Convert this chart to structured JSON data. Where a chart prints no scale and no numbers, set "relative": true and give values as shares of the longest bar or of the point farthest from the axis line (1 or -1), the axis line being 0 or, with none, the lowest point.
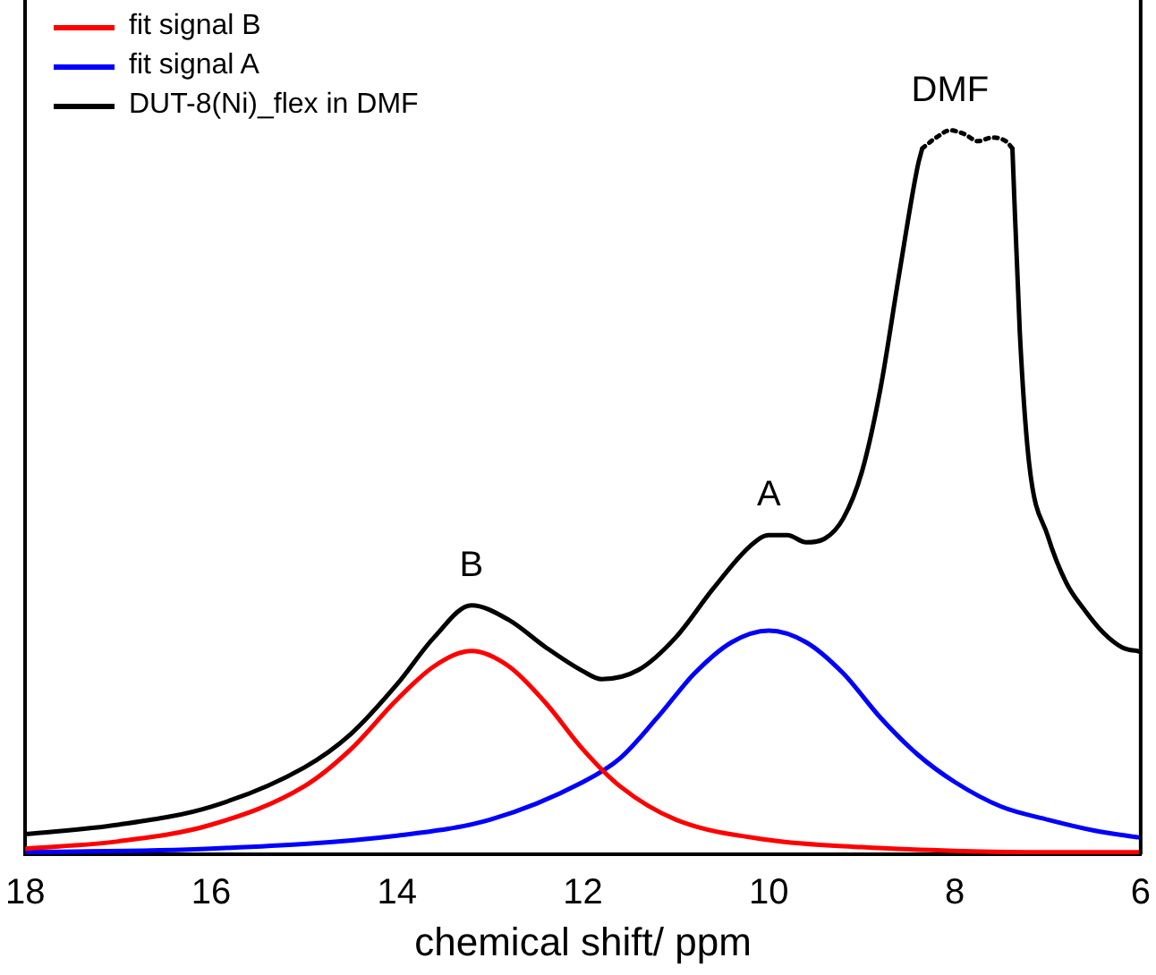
{
  "chart_data": {
    "type": "line",
    "relative": true,
    "xlabel": "chemical shift/ ppm",
    "xlim": [
      18,
      6
    ],
    "xticks": [
      18,
      16,
      14,
      12,
      10,
      8,
      6
    ],
    "grid": false,
    "legend": "top left",
    "marker": "none",
    "series": [
      {
        "name": "fit signal B",
        "color": "#ff0000",
        "line_style": "solid",
        "x": [
          18,
          17,
          16,
          15,
          14.5,
          14,
          13.6,
          13.2,
          12.8,
          12.4,
          12,
          11.6,
          11,
          10,
          9,
          8,
          7,
          6
        ],
        "values": [
          0.008,
          0.018,
          0.041,
          0.094,
          0.145,
          0.214,
          0.26,
          0.281,
          0.26,
          0.209,
          0.145,
          0.094,
          0.048,
          0.02,
          0.01,
          0.005,
          0.003,
          0.003
        ]
      },
      {
        "name": "fit signal A",
        "color": "#0000ff",
        "line_style": "solid",
        "x": [
          18,
          16,
          14,
          13,
          12,
          11.6,
          11.2,
          10.8,
          10.4,
          10,
          9.6,
          9.2,
          8.8,
          8.4,
          8,
          7.5,
          7,
          6.5,
          6
        ],
        "values": [
          0.003,
          0.008,
          0.026,
          0.048,
          0.1,
          0.133,
          0.189,
          0.25,
          0.293,
          0.309,
          0.293,
          0.25,
          0.189,
          0.138,
          0.1,
          0.066,
          0.048,
          0.033,
          0.023
        ]
      },
      {
        "name": "DUT-8(Ni)_flex in DMF",
        "color": "#000000",
        "line_style": "solid",
        "x": [
          18,
          17,
          16,
          15,
          14.5,
          14,
          13.6,
          13.2,
          12.8,
          12.4,
          12,
          11.8,
          11.4,
          11,
          10.6,
          10.2,
          10,
          9.8,
          9.6,
          9.4,
          9.2,
          9,
          8.8,
          8.6,
          8.4,
          8.35,
          7.9,
          7.38,
          7.3,
          7.2,
          7,
          6.8,
          6.6,
          6.4,
          6.2,
          6
        ],
        "values": [
          0.028,
          0.041,
          0.066,
          0.12,
          0.166,
          0.235,
          0.3,
          0.344,
          0.324,
          0.286,
          0.253,
          0.242,
          0.255,
          0.3,
          0.367,
          0.426,
          0.441,
          0.441,
          0.431,
          0.436,
          0.464,
          0.528,
          0.643,
          0.8,
          0.95,
          0.975,
          null,
          0.975,
          0.72,
          0.54,
          0.44,
          0.375,
          0.337,
          0.306,
          0.286,
          0.28
        ]
      },
      {
        "color": "#000000",
        "line_style": "dotted",
        "x": [
          8.35,
          8.2,
          8.05,
          7.9,
          7.75,
          7.6,
          7.45,
          7.38
        ],
        "values": [
          0.975,
          0.99,
          1,
          0.995,
          0.985,
          0.99,
          0.985,
          0.975
        ]
      }
    ],
    "annotations": [
      {
        "text": "B",
        "x": 13.2,
        "y": 0.344
      },
      {
        "text": "A",
        "x": 10,
        "y": 0.441
      },
      {
        "text": "DMF",
        "x": 8.05,
        "y": 1
      }
    ]
  }
}
